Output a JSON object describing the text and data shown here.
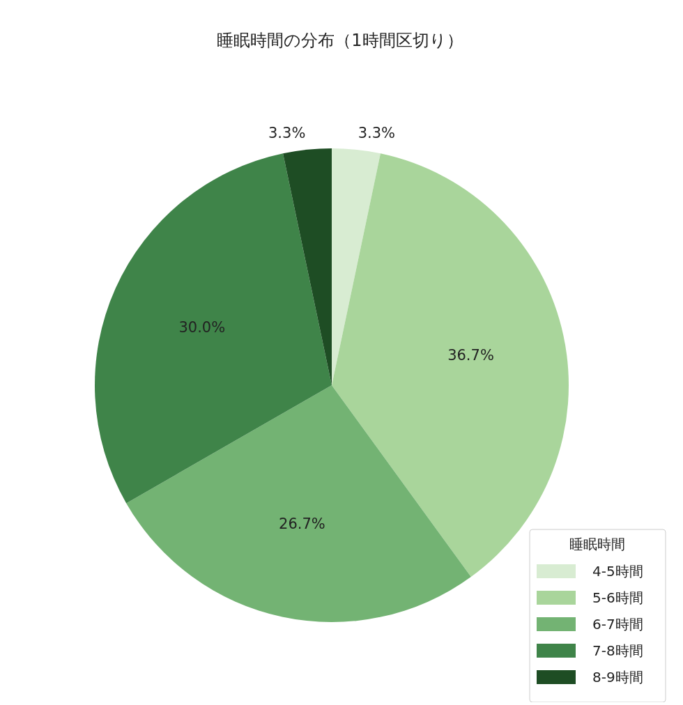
{
  "chart_data": {
    "type": "pie",
    "title": "睡眠時間の分布（1時間区切り）",
    "legend_title": "睡眠時間",
    "legend": "bottom right",
    "categories": [
      "4-5時間",
      "5-6時間",
      "6-7時間",
      "7-8時間",
      "8-9時間"
    ],
    "values": [
      3.3,
      36.7,
      26.7,
      30.0,
      3.3
    ],
    "value_labels": [
      "3.3%",
      "36.7%",
      "26.7%",
      "30.0%",
      "3.3%"
    ],
    "colors": [
      "#d8ecd2",
      "#a9d59b",
      "#73b373",
      "#3f8449",
      "#1e4d24"
    ]
  }
}
